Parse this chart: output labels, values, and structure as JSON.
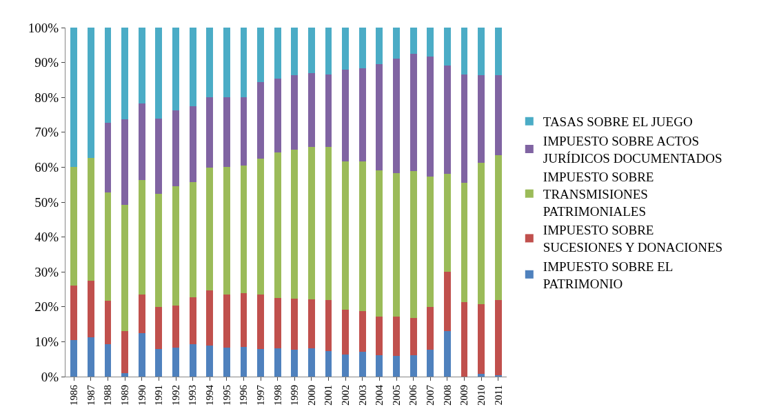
{
  "chart_data": {
    "type": "bar",
    "stacked": true,
    "categories": [
      "1986",
      "1987",
      "1988",
      "1989",
      "1990",
      "1991",
      "1992",
      "1993",
      "1994",
      "1995",
      "1996",
      "1997",
      "1998",
      "1999",
      "2000",
      "2001",
      "2002",
      "2003",
      "2004",
      "2005",
      "2006",
      "2007",
      "2008",
      "2009",
      "2010",
      "2011"
    ],
    "series": [
      {
        "name": "IMPUESTO SOBRE EL PATRIMONIO",
        "color": "#4f81bd",
        "values": [
          10.5,
          11.2,
          9.3,
          1.0,
          12.5,
          7.9,
          8.3,
          9.3,
          8.8,
          8.4,
          8.5,
          8.0,
          8.1,
          7.8,
          8.1,
          7.3,
          6.3,
          7.2,
          6.1,
          5.9,
          6.2,
          7.7,
          13.0,
          0.0,
          0.8,
          0.3
        ]
      },
      {
        "name": "IMPUESTO SOBRE SUCESIONES Y DONACIONES",
        "color": "#c0504d",
        "values": [
          15.5,
          16.3,
          12.4,
          12.1,
          11.1,
          12.0,
          12.0,
          13.4,
          16.0,
          15.1,
          15.5,
          15.6,
          14.4,
          14.5,
          14.0,
          14.6,
          12.8,
          11.5,
          11.0,
          11.3,
          10.6,
          12.2,
          17.0,
          21.4,
          20.0,
          21.7
        ]
      },
      {
        "name": "IMPUESTO SOBRE TRANSMISIONES PATRIMONIALES",
        "color": "#9bbb59",
        "values": [
          34.0,
          35.2,
          31.1,
          36.1,
          32.8,
          32.4,
          34.2,
          33.1,
          35.0,
          36.5,
          36.4,
          38.8,
          41.8,
          42.7,
          43.7,
          44.0,
          42.6,
          42.9,
          41.9,
          41.1,
          42.0,
          37.4,
          28.1,
          34.2,
          40.5,
          41.4
        ]
      },
      {
        "name": "IMPUESTO SOBRE ACTOS JURÍDICOS DOCUMENTADOS",
        "color": "#8064a2",
        "values": [
          0,
          0,
          20.0,
          24.6,
          21.8,
          21.6,
          21.8,
          21.7,
          20.3,
          20.0,
          19.7,
          21.9,
          21.1,
          21.4,
          21.1,
          20.6,
          26.2,
          26.8,
          30.6,
          32.8,
          33.7,
          34.4,
          31.1,
          30.9,
          25.1,
          23.0
        ]
      },
      {
        "name": "TASAS SOBRE EL JUEGO",
        "color": "#4bacc6",
        "values": [
          40.0,
          37.3,
          27.2,
          26.2,
          21.8,
          26.1,
          23.7,
          22.5,
          19.9,
          20.0,
          19.9,
          15.7,
          14.6,
          13.6,
          13.1,
          13.5,
          12.1,
          11.6,
          10.4,
          8.9,
          7.5,
          8.3,
          10.8,
          13.5,
          13.6,
          13.6
        ]
      }
    ],
    "ylim": [
      0,
      100
    ],
    "yticks": [
      {
        "value": 0,
        "label": "0%"
      },
      {
        "value": 10,
        "label": "10%"
      },
      {
        "value": 20,
        "label": "20%"
      },
      {
        "value": 30,
        "label": "30%"
      },
      {
        "value": 40,
        "label": "40%"
      },
      {
        "value": 50,
        "label": "50%"
      },
      {
        "value": 60,
        "label": "60%"
      },
      {
        "value": 70,
        "label": "70%"
      },
      {
        "value": 80,
        "label": "80%"
      },
      {
        "value": 90,
        "label": "90%"
      },
      {
        "value": 100,
        "label": "100%"
      }
    ],
    "legend": "right"
  }
}
